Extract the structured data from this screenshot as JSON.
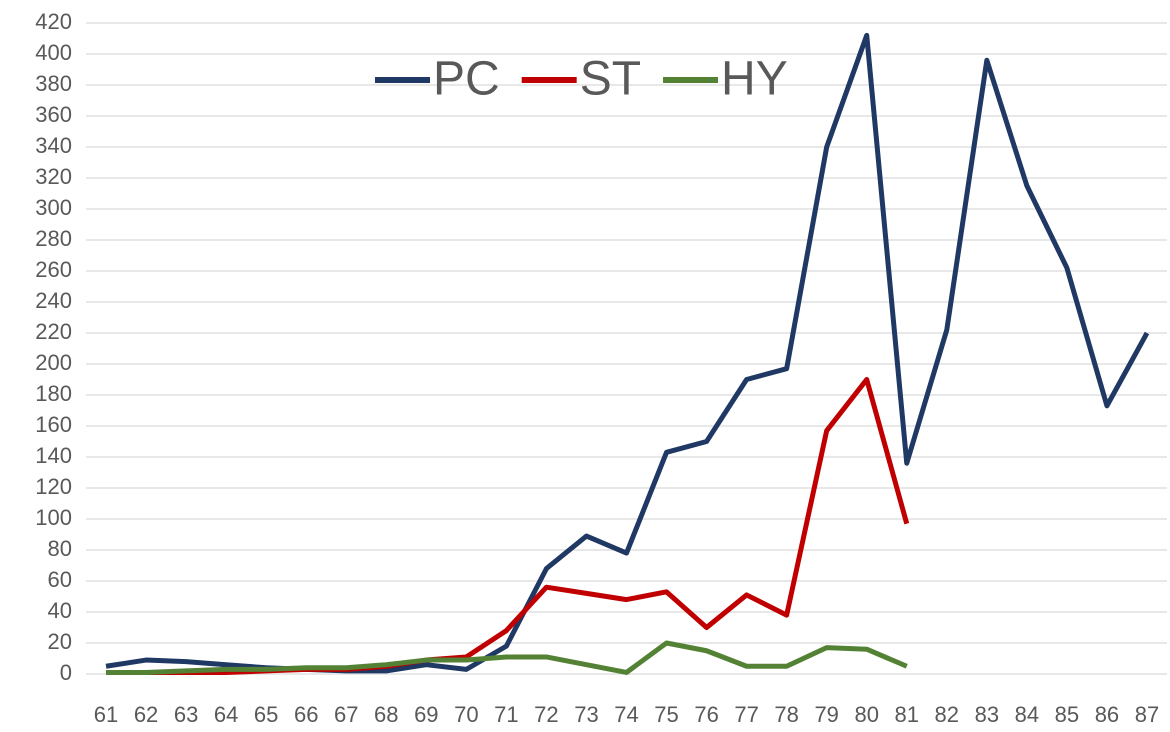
{
  "chart_data": {
    "type": "line",
    "categories": [
      "61",
      "62",
      "63",
      "64",
      "65",
      "66",
      "67",
      "68",
      "69",
      "70",
      "71",
      "72",
      "73",
      "74",
      "75",
      "76",
      "77",
      "78",
      "79",
      "80",
      "81",
      "82",
      "83",
      "84",
      "85",
      "86",
      "87"
    ],
    "series": [
      {
        "name": "PC",
        "color": "#203864",
        "values": [
          5,
          9,
          8,
          6,
          4,
          3,
          2,
          2,
          6,
          3,
          18,
          68,
          89,
          78,
          143,
          150,
          190,
          197,
          340,
          412,
          136,
          222,
          396,
          315,
          262,
          173,
          220
        ]
      },
      {
        "name": "ST",
        "color": "#c00000",
        "values": [
          1,
          1,
          1,
          1,
          2,
          3,
          3,
          5,
          9,
          11,
          28,
          56,
          52,
          48,
          53,
          30,
          51,
          38,
          157,
          190,
          97,
          null,
          null,
          null,
          null,
          null,
          null
        ]
      },
      {
        "name": "HY",
        "color": "#548235",
        "values": [
          1,
          1,
          2,
          3,
          3,
          4,
          4,
          6,
          9,
          9,
          11,
          11,
          6,
          1,
          20,
          15,
          5,
          5,
          17,
          16,
          5,
          null,
          null,
          null,
          null,
          null,
          null
        ]
      }
    ],
    "ylim": [
      0,
      420
    ],
    "yticks": [
      0,
      20,
      40,
      60,
      80,
      100,
      120,
      140,
      160,
      180,
      200,
      220,
      240,
      260,
      280,
      300,
      320,
      340,
      360,
      380,
      400,
      420
    ],
    "grid": true,
    "legend": "top"
  }
}
